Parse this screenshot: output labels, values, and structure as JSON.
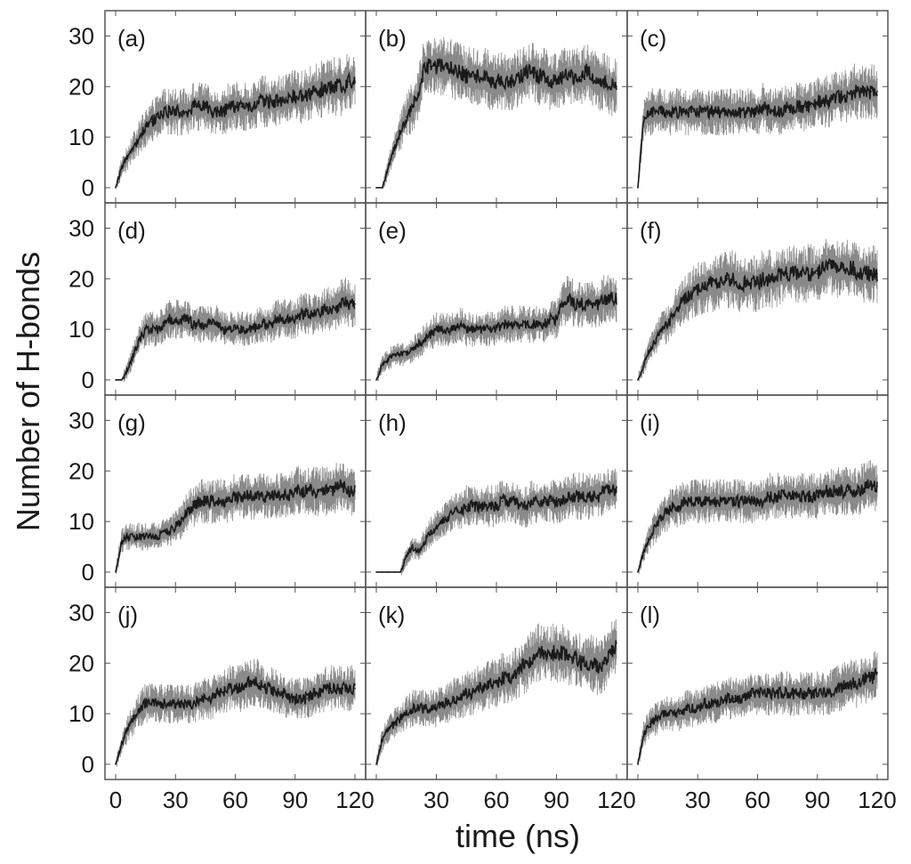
{
  "chart_data": {
    "type": "line",
    "layout": "4x3 panel grid with shared axes",
    "xlabel": "time (ns)",
    "ylabel": "Number of H-bonds",
    "xlim": [
      0,
      120
    ],
    "ylim": [
      -3,
      35
    ],
    "x_ticks": [
      0,
      30,
      60,
      90,
      120
    ],
    "x_tick_labels": [
      "0",
      "30",
      "60",
      "90",
      "120"
    ],
    "y_ticks": [
      0,
      10,
      20,
      30
    ],
    "y_tick_labels": [
      "0",
      "10",
      "20",
      "30"
    ],
    "line_color": "#1a1a1a",
    "grid": false,
    "legend": "none",
    "x": [
      0,
      3,
      6,
      9,
      12,
      15,
      18,
      21,
      24,
      27,
      30,
      33,
      36,
      39,
      42,
      45,
      48,
      51,
      54,
      57,
      60,
      63,
      66,
      69,
      72,
      75,
      78,
      81,
      84,
      87,
      90,
      93,
      96,
      99,
      102,
      105,
      108,
      111,
      114,
      117,
      120
    ],
    "panels": [
      {
        "label": "(a)",
        "values": [
          0,
          4,
          6,
          8,
          10,
          12,
          13,
          14,
          15,
          15,
          15,
          15,
          15,
          16,
          16,
          16,
          15,
          15,
          15,
          16,
          16,
          16,
          16,
          16,
          17,
          17,
          17,
          17,
          17,
          18,
          18,
          18,
          18,
          19,
          19,
          20,
          20,
          20,
          20,
          21,
          21
        ]
      },
      {
        "label": "(b)",
        "values": [
          0,
          0,
          4,
          8,
          11,
          14,
          16,
          18,
          24,
          24,
          24,
          24,
          24,
          23,
          23,
          22,
          22,
          22,
          22,
          21,
          21,
          21,
          21,
          21,
          22,
          23,
          23,
          22,
          22,
          21,
          21,
          22,
          22,
          22,
          22,
          23,
          22,
          21,
          21,
          20,
          20
        ]
      },
      {
        "label": "(c)",
        "values": [
          0,
          14,
          15,
          15,
          15,
          15,
          15,
          15,
          15,
          15,
          15,
          15,
          15,
          15,
          15,
          15,
          15,
          15,
          15,
          15,
          15,
          16,
          15,
          15,
          15,
          16,
          16,
          16,
          16,
          16,
          17,
          17,
          17,
          18,
          18,
          18,
          19,
          19,
          19,
          19,
          19
        ]
      },
      {
        "label": "(d)",
        "values": [
          0,
          0,
          2,
          5,
          8,
          10,
          10,
          10,
          11,
          12,
          12,
          12,
          12,
          11,
          11,
          11,
          11,
          11,
          10,
          10,
          10,
          10,
          10,
          10,
          11,
          11,
          11,
          12,
          12,
          12,
          12,
          13,
          13,
          13,
          13,
          14,
          14,
          14,
          16,
          15,
          15
        ]
      },
      {
        "label": "(e)",
        "values": [
          0,
          3,
          4,
          5,
          5,
          5,
          6,
          7,
          8,
          9,
          10,
          10,
          10,
          10,
          11,
          10,
          10,
          10,
          10,
          10,
          10,
          11,
          11,
          11,
          11,
          11,
          11,
          11,
          11,
          12,
          12,
          15,
          16,
          15,
          15,
          15,
          15,
          15,
          16,
          16,
          16
        ]
      },
      {
        "label": "(f)",
        "values": [
          0,
          3,
          6,
          8,
          10,
          11,
          13,
          15,
          16,
          17,
          18,
          18,
          19,
          19,
          20,
          20,
          20,
          19,
          19,
          19,
          19,
          20,
          20,
          20,
          21,
          21,
          21,
          21,
          21,
          21,
          21,
          22,
          23,
          22,
          22,
          22,
          22,
          21,
          21,
          21,
          21
        ]
      },
      {
        "label": "(g)",
        "values": [
          0,
          6,
          7,
          7,
          7,
          7,
          7,
          7,
          8,
          8,
          9,
          10,
          12,
          13,
          14,
          14,
          14,
          14,
          14,
          14,
          15,
          15,
          15,
          15,
          15,
          15,
          15,
          15,
          15,
          15,
          16,
          16,
          16,
          16,
          16,
          16,
          16,
          17,
          17,
          16,
          16
        ]
      },
      {
        "label": "(h)",
        "values": [
          0,
          0,
          0,
          0,
          0,
          3,
          5,
          4,
          6,
          8,
          9,
          10,
          11,
          12,
          12,
          13,
          13,
          13,
          13,
          13,
          13,
          14,
          14,
          14,
          13,
          13,
          14,
          14,
          14,
          14,
          14,
          14,
          15,
          15,
          15,
          15,
          15,
          15,
          16,
          16,
          16
        ]
      },
      {
        "label": "(i)",
        "values": [
          0,
          4,
          7,
          9,
          11,
          12,
          13,
          13,
          14,
          14,
          14,
          14,
          14,
          14,
          14,
          14,
          14,
          14,
          14,
          14,
          14,
          14,
          15,
          15,
          15,
          15,
          15,
          15,
          15,
          15,
          15,
          16,
          16,
          16,
          16,
          16,
          16,
          16,
          17,
          17,
          17
        ]
      },
      {
        "label": "(j)",
        "values": [
          0,
          4,
          7,
          9,
          11,
          12,
          12,
          12,
          12,
          12,
          12,
          12,
          12,
          12,
          13,
          13,
          13,
          14,
          14,
          15,
          15,
          15,
          16,
          16,
          16,
          15,
          15,
          14,
          14,
          13,
          13,
          13,
          13,
          14,
          14,
          15,
          15,
          15,
          15,
          15,
          15
        ]
      },
      {
        "label": "(k)",
        "values": [
          0,
          5,
          7,
          8,
          9,
          10,
          11,
          11,
          11,
          11,
          11,
          12,
          12,
          13,
          13,
          14,
          14,
          15,
          15,
          16,
          16,
          17,
          17,
          18,
          19,
          20,
          21,
          22,
          22,
          22,
          22,
          22,
          21,
          21,
          20,
          20,
          20,
          19,
          20,
          22,
          24
        ]
      },
      {
        "label": "(l)",
        "values": [
          0,
          6,
          8,
          9,
          10,
          10,
          10,
          10,
          11,
          11,
          11,
          12,
          12,
          12,
          13,
          13,
          13,
          13,
          13,
          14,
          14,
          14,
          14,
          14,
          14,
          14,
          14,
          14,
          14,
          14,
          14,
          14,
          14,
          15,
          15,
          16,
          16,
          16,
          17,
          17,
          18
        ]
      }
    ]
  }
}
